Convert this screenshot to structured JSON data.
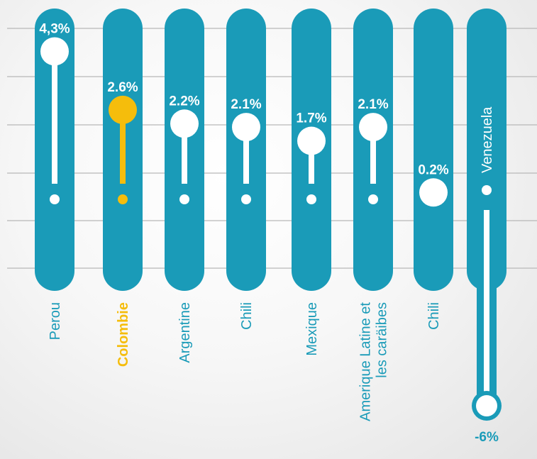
{
  "chart_data": {
    "type": "bar",
    "categories": [
      "Perou",
      "Colombie",
      "Argentine",
      "Chili",
      "Mexique",
      "Amerique Latine et les caräibes",
      "Chili",
      "Venezuela"
    ],
    "category_lines": [
      [
        "Perou"
      ],
      [
        "Colombie"
      ],
      [
        "Argentine"
      ],
      [
        "Chili"
      ],
      [
        "Mexique"
      ],
      [
        "Amerique Latine et",
        "les caräibes"
      ],
      [
        "Chili"
      ],
      [
        "Venezuela"
      ]
    ],
    "values": [
      4.3,
      2.6,
      2.2,
      2.1,
      1.7,
      2.1,
      0.2,
      -6
    ],
    "value_labels": [
      "4,3%",
      "2.6%",
      "2.2%",
      "2.1%",
      "1.7%",
      "2.1%",
      "0.2%",
      "-6%"
    ],
    "highlight": "Colombie",
    "grid": true,
    "colors": {
      "bar": "#1a9bb8",
      "highlight": "#f5bd0c",
      "marker": "#ffffff",
      "gridline": "#b8b8b8",
      "negative_label": "#1a9bb8"
    }
  }
}
